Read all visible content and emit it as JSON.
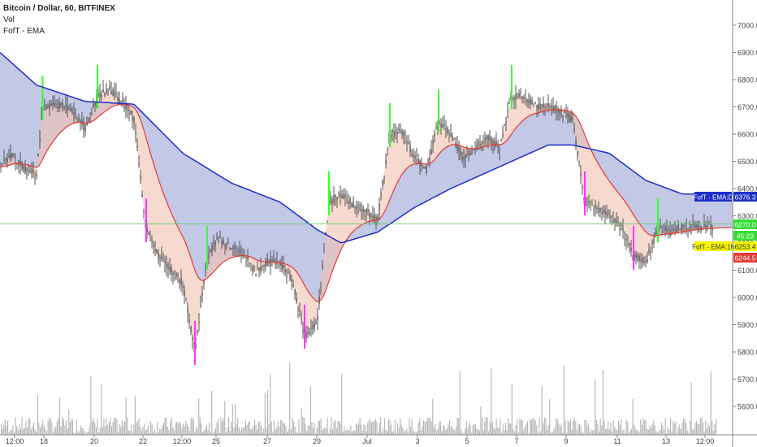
{
  "legend": {
    "title": "Bitcoin / Dollar, 60, BITFINEX",
    "vol": "Vol",
    "indicator": "FofT - EMA"
  },
  "colors": {
    "up": "#33ff33",
    "down": "#ff33ff",
    "neutral": "#555555",
    "ema_fast": "#e53935",
    "ema_slow": "#1e2fc8",
    "fill_slow": "#aab0dd",
    "fill_fast": "#f0c2b0",
    "volume": "#b3b3b3",
    "price_line": "#66cc66"
  },
  "chart_data": {
    "type": "candlestick",
    "symbol": "Bitcoin / Dollar",
    "interval": "60",
    "exchange": "BITFINEX",
    "ylim": [
      5540,
      7080
    ],
    "y_ticks": [
      "7000.0",
      "6900.0",
      "6800.0",
      "6700.0",
      "6600.0",
      "6500.0",
      "6400.0",
      "6300.0",
      "6200.0",
      "6100.0",
      "6000.0",
      "5900.0",
      "5800.0",
      "5700.0",
      "5600.0"
    ],
    "x_ticks": [
      "12:00",
      "18",
      "20",
      "22",
      "12:00",
      "25",
      "27",
      "29",
      "Jul",
      "3",
      "5",
      "7",
      "9",
      "11",
      "13",
      "12:00"
    ],
    "price_path": [
      {
        "t": "16 12:00",
        "p": 6480
      },
      {
        "t": "17 00:00",
        "p": 6520
      },
      {
        "t": "17 12:00",
        "p": 6470
      },
      {
        "t": "18 00:00",
        "p": 6450
      },
      {
        "t": "18 06:00",
        "p": 6700
      },
      {
        "t": "19 00:00",
        "p": 6710
      },
      {
        "t": "19 12:00",
        "p": 6680
      },
      {
        "t": "20 00:00",
        "p": 6620
      },
      {
        "t": "20 12:00",
        "p": 6740
      },
      {
        "t": "21 00:00",
        "p": 6760
      },
      {
        "t": "21 12:00",
        "p": 6720
      },
      {
        "t": "22 00:00",
        "p": 6650
      },
      {
        "t": "22 12:00",
        "p": 6250
      },
      {
        "t": "23 00:00",
        "p": 6150
      },
      {
        "t": "23 12:00",
        "p": 6100
      },
      {
        "t": "24 00:00",
        "p": 6050
      },
      {
        "t": "24 12:00",
        "p": 5800
      },
      {
        "t": "25 00:00",
        "p": 6150
      },
      {
        "t": "25 12:00",
        "p": 6220
      },
      {
        "t": "26 00:00",
        "p": 6180
      },
      {
        "t": "26 12:00",
        "p": 6160
      },
      {
        "t": "27 00:00",
        "p": 6090
      },
      {
        "t": "27 12:00",
        "p": 6130
      },
      {
        "t": "28 00:00",
        "p": 6120
      },
      {
        "t": "28 12:00",
        "p": 6060
      },
      {
        "t": "29 00:00",
        "p": 5860
      },
      {
        "t": "29 12:00",
        "p": 5900
      },
      {
        "t": "30 00:00",
        "p": 6350
      },
      {
        "t": "30 12:00",
        "p": 6380
      },
      {
        "t": "1 00:00",
        "p": 6340
      },
      {
        "t": "1 12:00",
        "p": 6320
      },
      {
        "t": "2 00:00",
        "p": 6290
      },
      {
        "t": "2 12:00",
        "p": 6600
      },
      {
        "t": "3 00:00",
        "p": 6610
      },
      {
        "t": "3 12:00",
        "p": 6520
      },
      {
        "t": "4 00:00",
        "p": 6470
      },
      {
        "t": "4 12:00",
        "p": 6650
      },
      {
        "t": "5 00:00",
        "p": 6600
      },
      {
        "t": "5 12:00",
        "p": 6510
      },
      {
        "t": "6 00:00",
        "p": 6550
      },
      {
        "t": "6 12:00",
        "p": 6590
      },
      {
        "t": "7 00:00",
        "p": 6550
      },
      {
        "t": "7 12:00",
        "p": 6740
      },
      {
        "t": "8 00:00",
        "p": 6740
      },
      {
        "t": "8 12:00",
        "p": 6700
      },
      {
        "t": "9 00:00",
        "p": 6710
      },
      {
        "t": "9 12:00",
        "p": 6680
      },
      {
        "t": "10 00:00",
        "p": 6650
      },
      {
        "t": "10 12:00",
        "p": 6350
      },
      {
        "t": "11 00:00",
        "p": 6330
      },
      {
        "t": "11 12:00",
        "p": 6300
      },
      {
        "t": "12 00:00",
        "p": 6260
      },
      {
        "t": "12 12:00",
        "p": 6150
      },
      {
        "t": "13 00:00",
        "p": 6130
      },
      {
        "t": "13 12:00",
        "p": 6250
      },
      {
        "t": "14 00:00",
        "p": 6240
      },
      {
        "t": "14 12:00",
        "p": 6260
      }
    ],
    "ema_slow_path": [
      {
        "t": "16 12:00",
        "p": 6900
      },
      {
        "t": "18 00:00",
        "p": 6780
      },
      {
        "t": "20 00:00",
        "p": 6720
      },
      {
        "t": "22 00:00",
        "p": 6710
      },
      {
        "t": "24 00:00",
        "p": 6530
      },
      {
        "t": "26 00:00",
        "p": 6420
      },
      {
        "t": "28 00:00",
        "p": 6350
      },
      {
        "t": "29 12:00",
        "p": 6250
      },
      {
        "t": "30 12:00",
        "p": 6200
      },
      {
        "t": "2 00:00",
        "p": 6240
      },
      {
        "t": "3 12:00",
        "p": 6330
      },
      {
        "t": "5 00:00",
        "p": 6400
      },
      {
        "t": "7 12:00",
        "p": 6500
      },
      {
        "t": "9 00:00",
        "p": 6560
      },
      {
        "t": "10 00:00",
        "p": 6560
      },
      {
        "t": "11 12:00",
        "p": 6530
      },
      {
        "t": "13 00:00",
        "p": 6430
      },
      {
        "t": "14 12:00",
        "p": 6380
      }
    ],
    "price_labels": [
      {
        "label": "FofT - EMA:D",
        "value": "6376.3",
        "color": "#1e2fc8"
      },
      {
        "label": "",
        "value": "6270.0",
        "color": "#33dd33"
      },
      {
        "label": "",
        "value": "45:23",
        "color": "#33dd33"
      },
      {
        "label": "FofT - EMA:1h",
        "value": "6253.4",
        "color": "#f4f400"
      },
      {
        "label": "",
        "value": "6244.5",
        "color": "#e53935"
      }
    ],
    "current_price": 6270.0,
    "grid": false,
    "legend_position": "top-left"
  }
}
